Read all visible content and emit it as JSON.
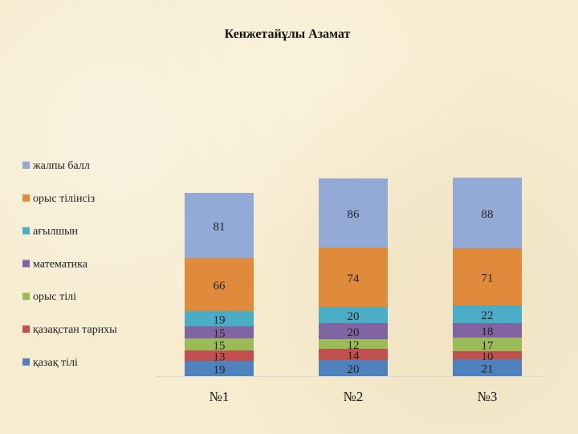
{
  "chart_data": {
    "type": "bar",
    "stacked": true,
    "title": "Кенжетайұлы Азамат",
    "categories": [
      "№1",
      "№2",
      "№3"
    ],
    "series": [
      {
        "name": "қазақ тілі",
        "values": [
          19,
          20,
          21
        ],
        "color": "#4f81bd"
      },
      {
        "name": "қазақстан тарихы",
        "values": [
          13,
          14,
          10
        ],
        "color": "#c0504d"
      },
      {
        "name": "орыс тілі",
        "values": [
          15,
          12,
          17
        ],
        "color": "#9bbb59"
      },
      {
        "name": "математика",
        "values": [
          15,
          20,
          18
        ],
        "color": "#8064a2"
      },
      {
        "name": "ағылшын",
        "values": [
          19,
          20,
          22
        ],
        "color": "#4bacc6"
      },
      {
        "name": "орыс тілінсіз",
        "values": [
          66,
          74,
          71
        ],
        "color": "#e08a3c"
      },
      {
        "name": "жалпы балл",
        "values": [
          81,
          86,
          88
        ],
        "color": "#94aad6"
      }
    ],
    "legend_position": "left",
    "grid": false,
    "ylim": [
      0,
      305
    ]
  }
}
